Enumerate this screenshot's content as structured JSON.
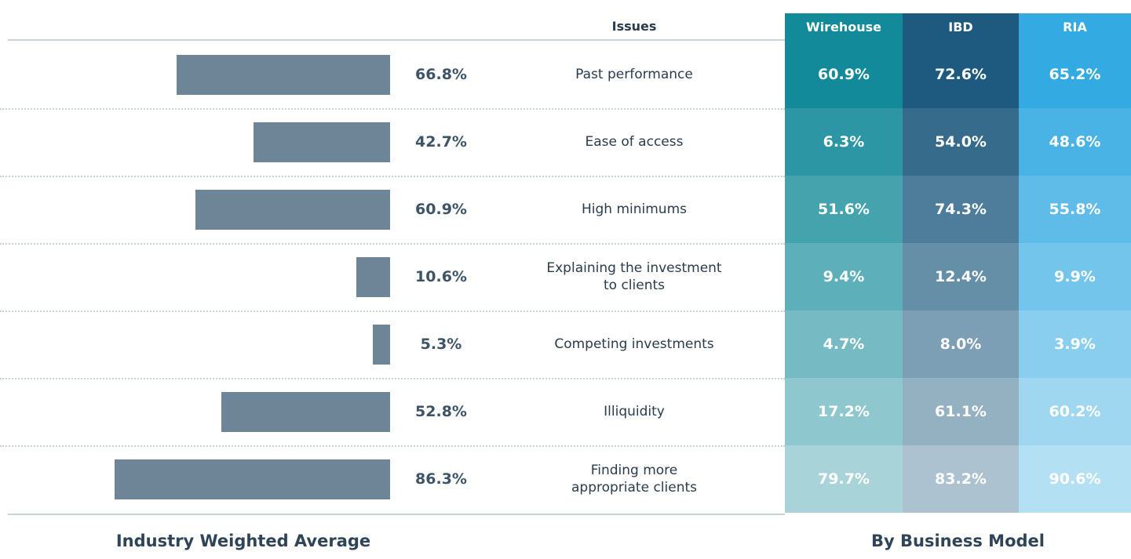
{
  "chart_data": {
    "type": "bar",
    "orientation": "horizontal",
    "bar_color": "#6d8597",
    "issues_header": "Issues",
    "categories": [
      "Past performance",
      "Ease of access",
      "High minimums",
      "Explaining the investment\nto clients",
      "Competing investments",
      "Illiquidity",
      "Finding more\nappropriate clients"
    ],
    "values": [
      66.8,
      42.7,
      60.9,
      10.6,
      5.3,
      52.8,
      86.3
    ],
    "value_labels": [
      "66.8%",
      "42.7%",
      "60.9%",
      "10.6%",
      "5.3%",
      "52.8%",
      "86.3%"
    ],
    "table": {
      "columns": [
        {
          "name": "Wirehouse",
          "color": "#138a99",
          "values": [
            60.9,
            6.3,
            51.6,
            9.4,
            4.7,
            17.2,
            79.7
          ],
          "value_labels": [
            "60.9%",
            "6.3%",
            "51.6%",
            "9.4%",
            "4.7%",
            "17.2%",
            "79.7%"
          ]
        },
        {
          "name": "IBD",
          "color": "#1e5a7f",
          "values": [
            72.6,
            54.0,
            74.3,
            12.4,
            8.0,
            61.1,
            83.2
          ],
          "value_labels": [
            "72.6%",
            "54.0%",
            "74.3%",
            "12.4%",
            "8.0%",
            "61.1%",
            "83.2%"
          ]
        },
        {
          "name": "RIA",
          "color": "#34aae2",
          "values": [
            65.2,
            48.6,
            55.8,
            9.9,
            3.9,
            60.2,
            90.6
          ],
          "value_labels": [
            "65.2%",
            "48.6%",
            "55.8%",
            "9.9%",
            "3.9%",
            "60.2%",
            "90.6%"
          ]
        }
      ]
    },
    "left_footer": "Industry Weighted Average",
    "right_footer": "By Business Model"
  }
}
